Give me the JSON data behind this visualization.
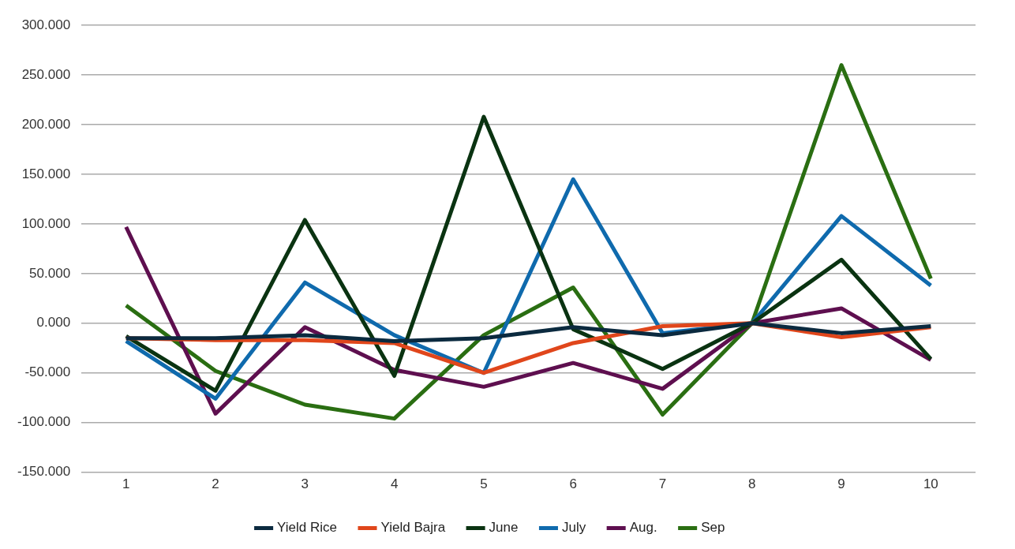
{
  "chart_data": {
    "type": "line",
    "categories": [
      "1",
      "2",
      "3",
      "4",
      "5",
      "6",
      "7",
      "8",
      "9",
      "10"
    ],
    "series": [
      {
        "name": "Yield Rice",
        "color": "#0b2a3f",
        "values": [
          -15,
          -15,
          -12,
          -18,
          -15,
          -4,
          -12,
          0,
          -10,
          -3
        ]
      },
      {
        "name": "Yield Bajra",
        "color": "#e0461b",
        "values": [
          -15,
          -17,
          -17,
          -20,
          -50,
          -20,
          -3,
          0,
          -14,
          -4
        ]
      },
      {
        "name": "June",
        "color": "#0a3311",
        "values": [
          -13,
          -68,
          104,
          -53,
          208,
          -6,
          -46,
          0,
          64,
          -36
        ]
      },
      {
        "name": "July",
        "color": "#0f6aad",
        "values": [
          -18,
          -76,
          41,
          -12,
          -50,
          145,
          -10,
          0,
          108,
          38
        ]
      },
      {
        "name": "Aug.",
        "color": "#5e0f4f",
        "values": [
          97,
          -91,
          -4,
          -47,
          -64,
          -40,
          -66,
          0,
          15,
          -37
        ]
      },
      {
        "name": "Sep",
        "color": "#2a6e12",
        "values": [
          18,
          -48,
          -82,
          -96,
          -12,
          36,
          -92,
          0,
          260,
          45
        ]
      }
    ],
    "ylim": [
      -150,
      300
    ],
    "yticks": [
      {
        "value": -150,
        "label": "-150.000"
      },
      {
        "value": -100,
        "label": "-100.000"
      },
      {
        "value": -50,
        "label": "-50.000"
      },
      {
        "value": 0,
        "label": "0.000"
      },
      {
        "value": 50,
        "label": "50.000"
      },
      {
        "value": 100,
        "label": "100.000"
      },
      {
        "value": 150,
        "label": "150.000"
      },
      {
        "value": 200,
        "label": "200.000"
      },
      {
        "value": 250,
        "label": "250.000"
      },
      {
        "value": 300,
        "label": "300.000"
      }
    ],
    "grid": "y",
    "legend": "bottom",
    "marker": "none",
    "line_style": "solid"
  }
}
